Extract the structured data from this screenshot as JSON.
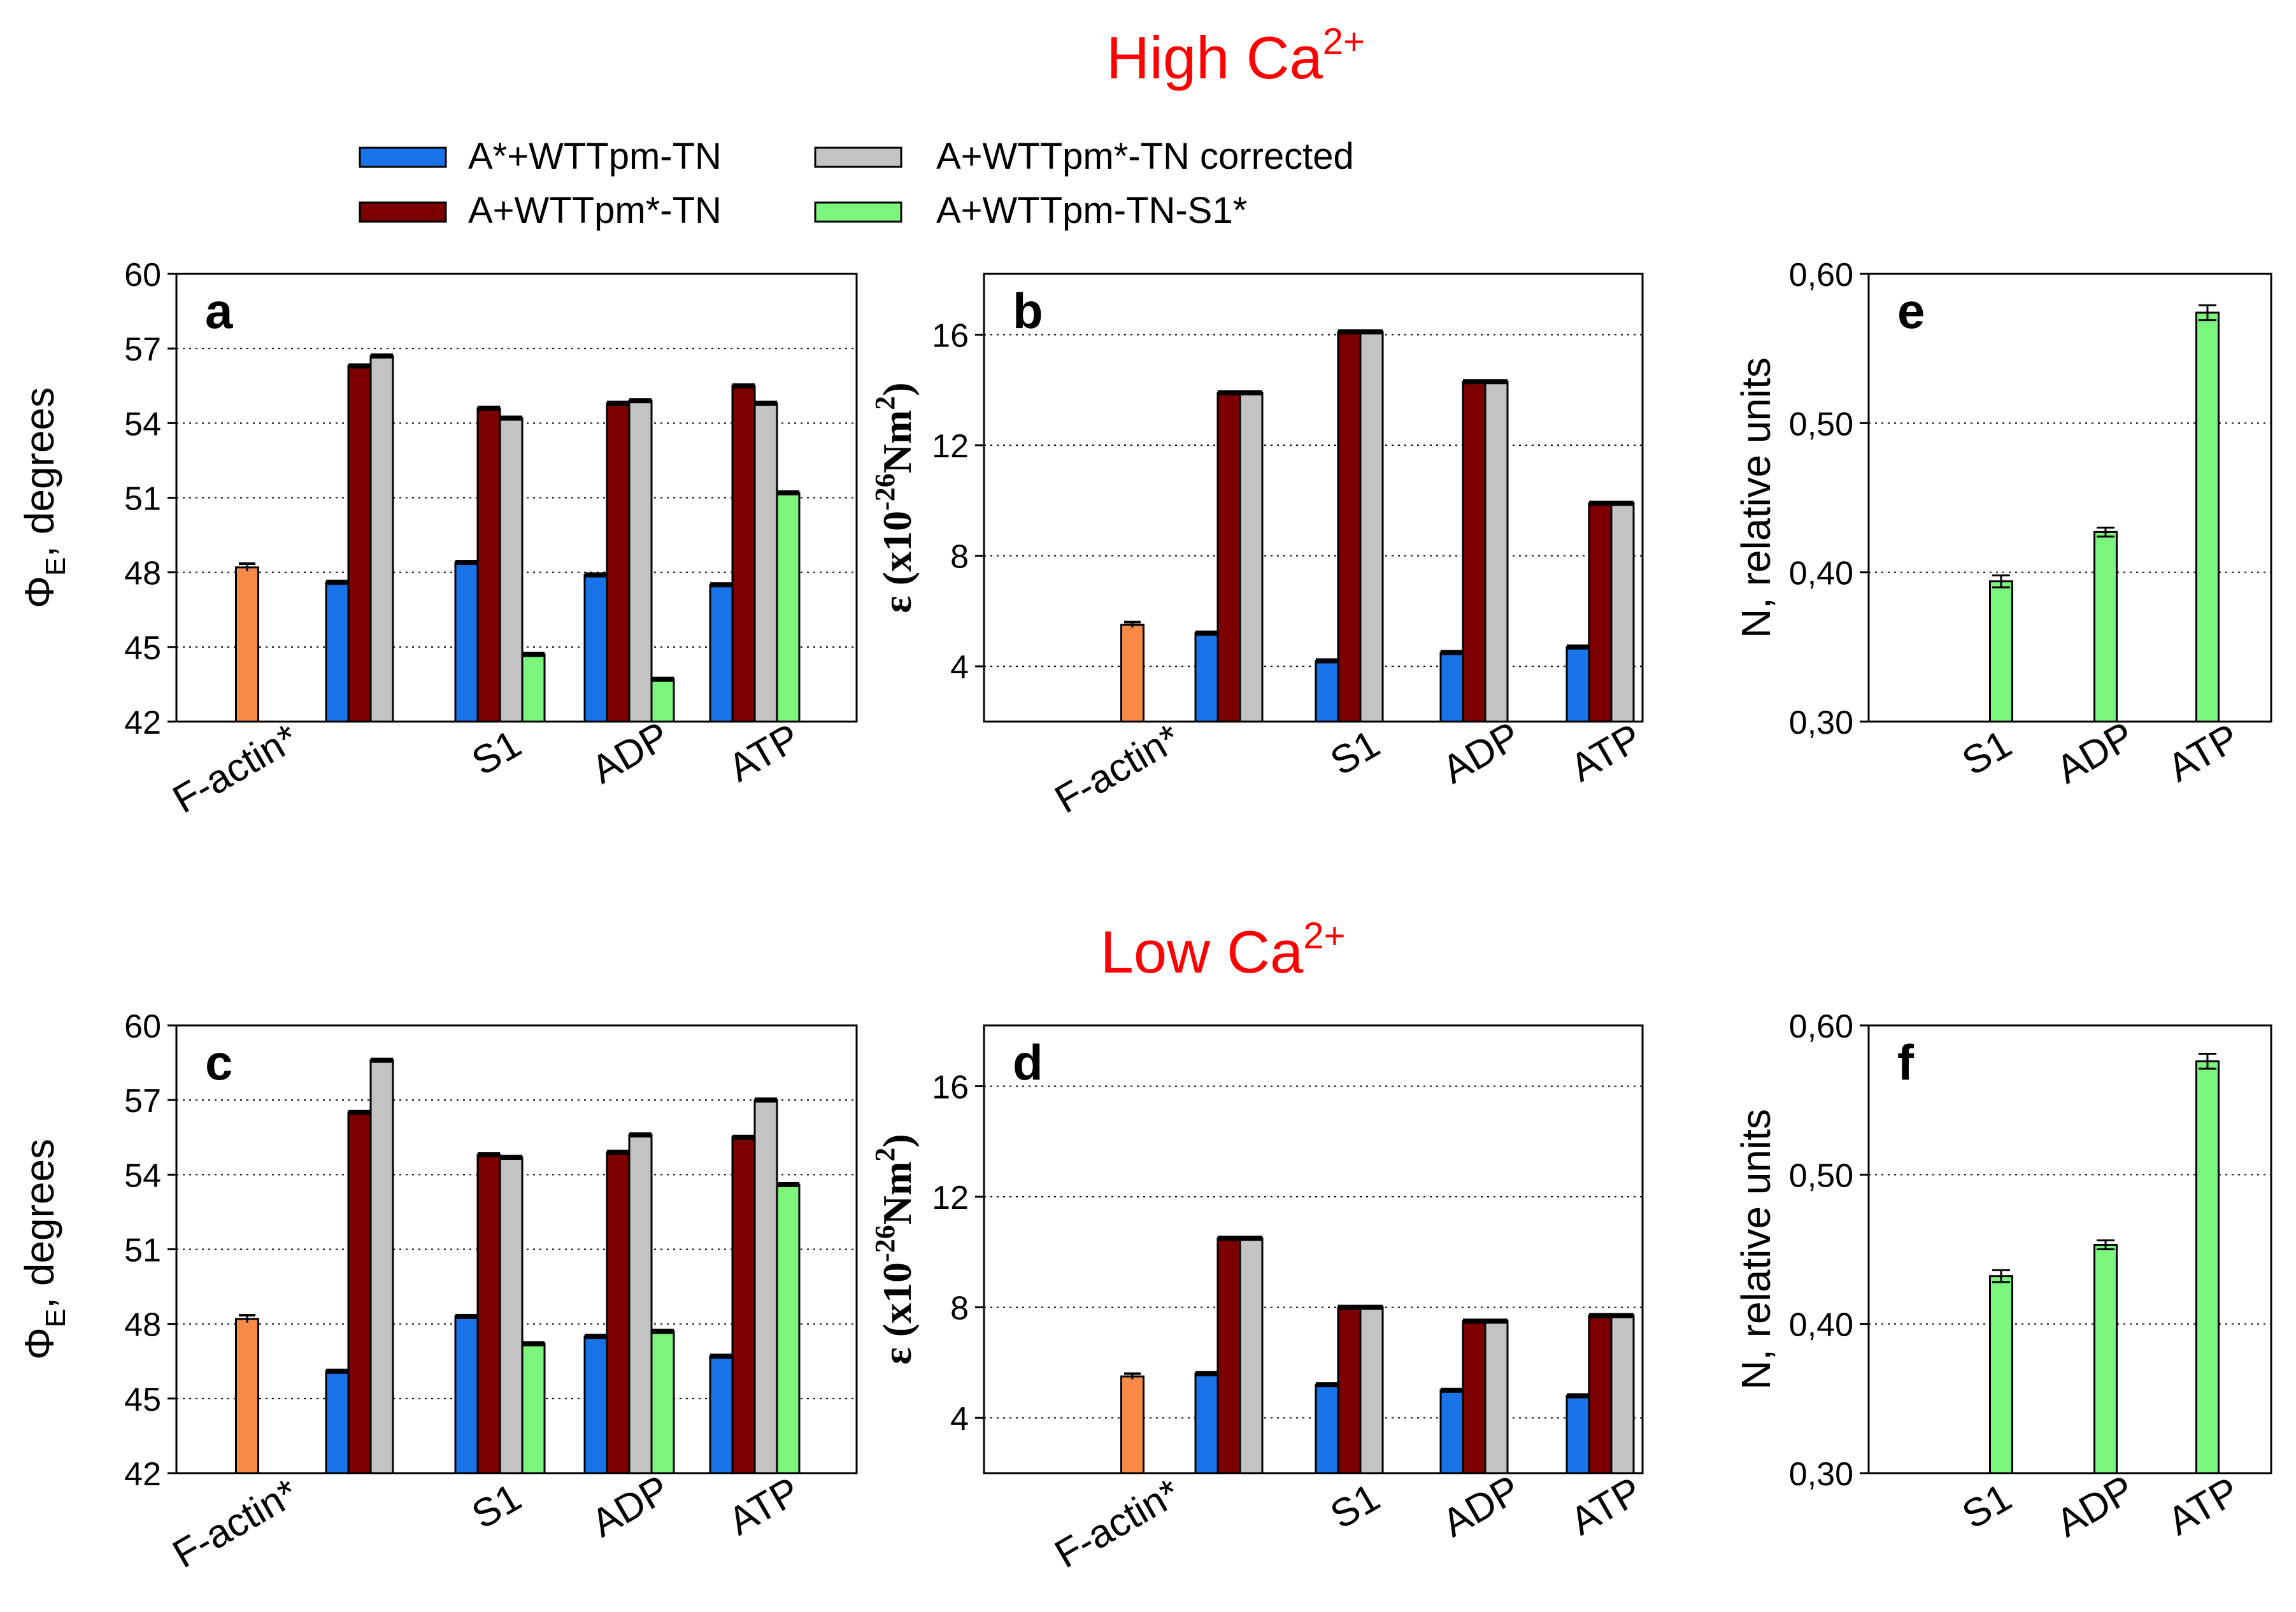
{
  "headings": {
    "high": {
      "main": "High Ca",
      "sup": "2+"
    },
    "low": {
      "main": "Low Ca",
      "sup": "2+"
    }
  },
  "legend": [
    {
      "key": "astar",
      "label": "A*+WTTpm-TN",
      "color": "#1874e8"
    },
    {
      "key": "tpm",
      "label": "A+WTTpm*-TN",
      "color": "#7d0000"
    },
    {
      "key": "corr",
      "label": "A+WTTpm*-TN corrected",
      "color": "#c3c3c3"
    },
    {
      "key": "s1",
      "label": "A+WTTpm-TN-S1*",
      "color": "#7cf57c"
    }
  ],
  "factin_color": "#f88a47",
  "chart_data": [
    {
      "id": "a",
      "type": "bar",
      "panel_label": "a",
      "ylabel": {
        "main": "Φ",
        "sub": "E",
        "rest": ", degrees"
      },
      "ylim": [
        42,
        60
      ],
      "yticks": [
        "42",
        "45",
        "48",
        "51",
        "54",
        "57",
        "60"
      ],
      "categories": [
        "F-actin*",
        "",
        "S1",
        "ADP",
        "ATP"
      ],
      "factin": {
        "value": 48.2,
        "err": 0.15
      },
      "series": [
        {
          "name": "A*+WTTpm-TN",
          "values": [
            null,
            47.6,
            48.4,
            47.9,
            47.5
          ]
        },
        {
          "name": "A+WTTpm*-TN",
          "values": [
            null,
            56.3,
            54.6,
            54.8,
            55.5
          ]
        },
        {
          "name": "A+WTTpm*-TN corrected",
          "values": [
            null,
            56.7,
            54.2,
            54.9,
            54.8
          ]
        },
        {
          "name": "A+WTTpm-TN-S1*",
          "values": [
            null,
            null,
            44.7,
            43.7,
            51.2
          ]
        }
      ]
    },
    {
      "id": "b",
      "type": "bar",
      "panel_label": "b",
      "ylabel": {
        "main": "ε (x10",
        "sup1": "-26",
        "mid": "Nm",
        "sup2": "2",
        "end": ")"
      },
      "ylim": [
        2,
        18.2
      ],
      "yticks": [
        "4",
        "8",
        "12",
        "16"
      ],
      "categories": [
        "F-actin*",
        "",
        "S1",
        "ADP",
        "ATP"
      ],
      "factin": {
        "value": 5.5,
        "err": 0.1
      },
      "series": [
        {
          "name": "A*+WTTpm-TN",
          "values": [
            null,
            5.2,
            4.2,
            4.5,
            4.7
          ]
        },
        {
          "name": "A+WTTpm*-TN",
          "values": [
            null,
            13.9,
            16.1,
            14.3,
            9.9
          ]
        },
        {
          "name": "A+WTTpm*-TN corrected",
          "values": [
            null,
            13.9,
            16.1,
            14.3,
            9.9
          ]
        }
      ]
    },
    {
      "id": "e",
      "type": "bar",
      "panel_label": "e",
      "ylabel": {
        "main": "N, relative units"
      },
      "ylim": [
        0.3,
        0.6
      ],
      "yticks": [
        "0,30",
        "0,40",
        "0,50",
        "0,60"
      ],
      "categories": [
        "S1",
        "ADP",
        "ATP"
      ],
      "series": [
        {
          "name": "A+WTTpm-TN-S1*",
          "values": [
            0.394,
            0.427,
            0.574
          ],
          "err": [
            0.004,
            0.003,
            0.005
          ]
        }
      ]
    },
    {
      "id": "c",
      "type": "bar",
      "panel_label": "c",
      "ylabel": {
        "main": "Φ",
        "sub": "E",
        "rest": ", degrees"
      },
      "ylim": [
        42,
        60
      ],
      "yticks": [
        "42",
        "45",
        "48",
        "51",
        "54",
        "57",
        "60"
      ],
      "categories": [
        "F-actin*",
        "",
        "S1",
        "ADP",
        "ATP"
      ],
      "factin": {
        "value": 48.2,
        "err": 0.15
      },
      "series": [
        {
          "name": "A*+WTTpm-TN",
          "values": [
            null,
            46.1,
            48.3,
            47.5,
            46.7
          ]
        },
        {
          "name": "A+WTTpm*-TN",
          "values": [
            null,
            56.5,
            54.8,
            54.9,
            55.5
          ]
        },
        {
          "name": "A+WTTpm*-TN corrected",
          "values": [
            null,
            58.6,
            54.7,
            55.6,
            57.0
          ]
        },
        {
          "name": "A+WTTpm-TN-S1*",
          "values": [
            null,
            null,
            47.2,
            47.7,
            53.6
          ]
        }
      ]
    },
    {
      "id": "d",
      "type": "bar",
      "panel_label": "d",
      "ylabel": {
        "main": "ε (x10",
        "sup1": "-26",
        "mid": "Nm",
        "sup2": "2",
        "end": ")"
      },
      "ylim": [
        2,
        18.2
      ],
      "yticks": [
        "4",
        "8",
        "12",
        "16"
      ],
      "categories": [
        "F-actin*",
        "",
        "S1",
        "ADP",
        "ATP"
      ],
      "factin": {
        "value": 5.5,
        "err": 0.1
      },
      "series": [
        {
          "name": "A*+WTTpm-TN",
          "values": [
            null,
            5.6,
            5.2,
            5.0,
            4.8
          ]
        },
        {
          "name": "A+WTTpm*-TN",
          "values": [
            null,
            10.5,
            8.0,
            7.5,
            7.7
          ]
        },
        {
          "name": "A+WTTpm*-TN corrected",
          "values": [
            null,
            10.5,
            8.0,
            7.5,
            7.7
          ]
        }
      ]
    },
    {
      "id": "f",
      "type": "bar",
      "panel_label": "f",
      "ylabel": {
        "main": "N, relative units"
      },
      "ylim": [
        0.3,
        0.6
      ],
      "yticks": [
        "0,30",
        "0,40",
        "0,50",
        "0,60"
      ],
      "categories": [
        "S1",
        "ADP",
        "ATP"
      ],
      "series": [
        {
          "name": "A+WTTpm-TN-S1*",
          "values": [
            0.432,
            0.453,
            0.576
          ],
          "err": [
            0.004,
            0.003,
            0.005
          ]
        }
      ]
    }
  ]
}
